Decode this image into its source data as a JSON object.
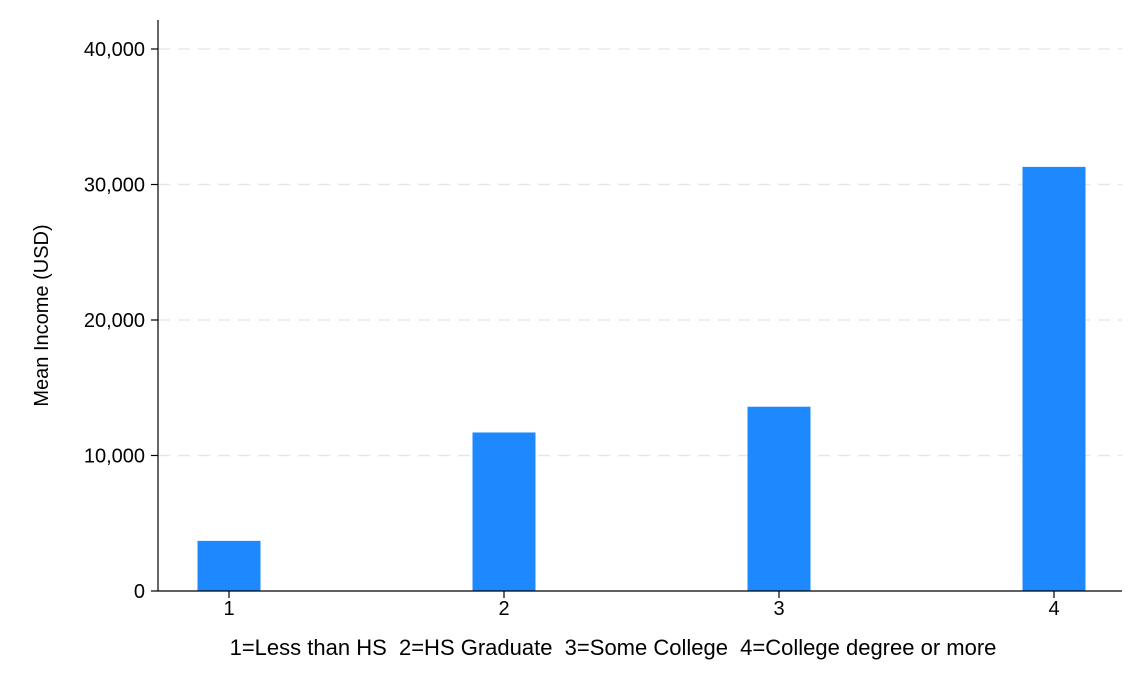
{
  "chart_data": {
    "type": "bar",
    "categories": [
      "1",
      "2",
      "3",
      "4"
    ],
    "values": [
      3700,
      11700,
      13600,
      31300
    ],
    "xlabel": "1=Less than HS  2=HS Graduate  3=Some College  4=College degree or more",
    "ylabel": "Mean Income (USD)",
    "ylim": [
      0,
      40000
    ],
    "yticks": [
      0,
      10000,
      20000,
      30000,
      40000
    ],
    "ytick_labels": [
      "0",
      "10,000",
      "20,000",
      "30,000",
      "40,000"
    ],
    "grid": true,
    "bar_color": "#1e88ff"
  }
}
